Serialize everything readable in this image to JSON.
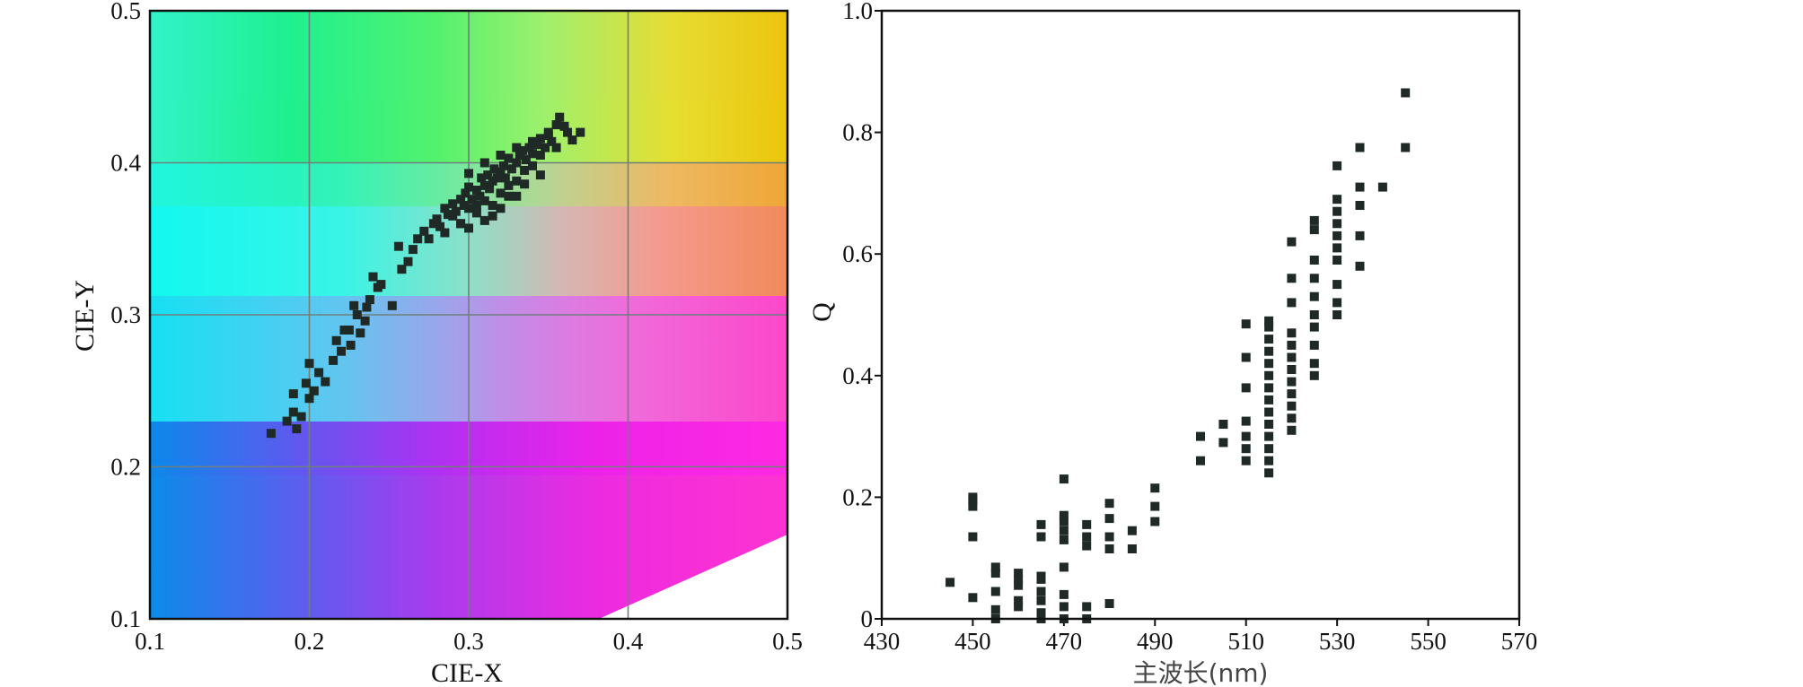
{
  "chart_data": [
    {
      "type": "scatter",
      "title": "",
      "xlabel": "CIE-X",
      "ylabel": "CIE-Y",
      "xlim": [
        0.1,
        0.5
      ],
      "ylim": [
        0.1,
        0.5
      ],
      "xticks": [
        "0.1",
        "0.2",
        "0.3",
        "0.4",
        "0.5"
      ],
      "yticks": [
        "0.1",
        "0.2",
        "0.3",
        "0.4",
        "0.5"
      ],
      "grid": true,
      "background": "CIE chromaticity color gamut",
      "marker_color": "#1f2a26",
      "x": [
        0.176,
        0.186,
        0.19,
        0.192,
        0.195,
        0.2,
        0.198,
        0.203,
        0.206,
        0.21,
        0.19,
        0.2,
        0.215,
        0.22,
        0.217,
        0.225,
        0.23,
        0.235,
        0.228,
        0.232,
        0.238,
        0.24,
        0.243,
        0.245,
        0.236,
        0.226,
        0.222,
        0.252,
        0.258,
        0.262,
        0.256,
        0.265,
        0.268,
        0.272,
        0.275,
        0.278,
        0.28,
        0.282,
        0.285,
        0.287,
        0.29,
        0.292,
        0.295,
        0.297,
        0.298,
        0.3,
        0.302,
        0.305,
        0.307,
        0.308,
        0.31,
        0.312,
        0.313,
        0.315,
        0.316,
        0.318,
        0.32,
        0.322,
        0.323,
        0.325,
        0.327,
        0.33,
        0.332,
        0.334,
        0.336,
        0.338,
        0.34,
        0.343,
        0.345,
        0.348,
        0.35,
        0.352,
        0.355,
        0.357,
        0.36,
        0.362,
        0.365,
        0.37,
        0.29,
        0.295,
        0.3,
        0.305,
        0.31,
        0.315,
        0.32,
        0.325,
        0.33,
        0.335,
        0.34,
        0.345,
        0.3,
        0.31,
        0.32,
        0.33,
        0.34,
        0.35,
        0.285,
        0.295,
        0.305,
        0.315,
        0.325,
        0.335,
        0.345,
        0.355,
        0.3,
        0.31,
        0.32,
        0.33
      ],
      "y": [
        0.222,
        0.23,
        0.236,
        0.225,
        0.233,
        0.245,
        0.255,
        0.25,
        0.262,
        0.256,
        0.248,
        0.268,
        0.27,
        0.276,
        0.283,
        0.29,
        0.3,
        0.296,
        0.306,
        0.288,
        0.31,
        0.325,
        0.318,
        0.32,
        0.305,
        0.28,
        0.29,
        0.306,
        0.33,
        0.335,
        0.345,
        0.343,
        0.35,
        0.355,
        0.35,
        0.36,
        0.363,
        0.358,
        0.37,
        0.366,
        0.373,
        0.368,
        0.376,
        0.372,
        0.38,
        0.384,
        0.376,
        0.382,
        0.378,
        0.39,
        0.385,
        0.392,
        0.383,
        0.388,
        0.396,
        0.39,
        0.394,
        0.398,
        0.39,
        0.403,
        0.396,
        0.4,
        0.405,
        0.408,
        0.402,
        0.41,
        0.406,
        0.412,
        0.416,
        0.41,
        0.418,
        0.414,
        0.425,
        0.43,
        0.424,
        0.42,
        0.415,
        0.42,
        0.365,
        0.36,
        0.37,
        0.372,
        0.375,
        0.365,
        0.38,
        0.385,
        0.388,
        0.395,
        0.398,
        0.405,
        0.393,
        0.4,
        0.405,
        0.41,
        0.414,
        0.42,
        0.354,
        0.36,
        0.367,
        0.372,
        0.378,
        0.386,
        0.392,
        0.41,
        0.357,
        0.362,
        0.37,
        0.378
      ]
    },
    {
      "type": "scatter",
      "title": "",
      "xlabel": "主波长(nm)",
      "ylabel": "Q",
      "xlim": [
        430,
        570
      ],
      "ylim": [
        0,
        1.0
      ],
      "xticks": [
        "430",
        "450",
        "470",
        "490",
        "510",
        "530",
        "550",
        "570"
      ],
      "yticks": [
        "0",
        "0.2",
        "0.4",
        "0.6",
        "0.8",
        "1.0"
      ],
      "grid": false,
      "marker_color": "#1f2a26",
      "x": [
        445,
        450,
        450,
        450,
        450,
        450,
        455,
        455,
        455,
        455,
        455,
        460,
        460,
        460,
        460,
        460,
        465,
        465,
        465,
        465,
        465,
        465,
        465,
        465,
        470,
        470,
        470,
        470,
        470,
        470,
        470,
        470,
        470,
        475,
        475,
        475,
        475,
        475,
        480,
        480,
        480,
        480,
        480,
        485,
        485,
        490,
        490,
        490,
        500,
        500,
        505,
        505,
        510,
        510,
        510,
        510,
        510,
        510,
        510,
        515,
        515,
        515,
        515,
        515,
        515,
        515,
        515,
        515,
        515,
        515,
        515,
        515,
        515,
        520,
        520,
        520,
        520,
        520,
        520,
        520,
        520,
        520,
        520,
        520,
        520,
        525,
        525,
        525,
        525,
        525,
        525,
        525,
        525,
        525,
        525,
        530,
        530,
        530,
        530,
        530,
        530,
        530,
        530,
        530,
        530,
        535,
        535,
        535,
        535,
        535,
        540,
        545,
        545
      ],
      "y": [
        0.06,
        0.035,
        0.135,
        0.185,
        0.195,
        0.2,
        0.0,
        0.015,
        0.045,
        0.075,
        0.085,
        0.02,
        0.03,
        0.055,
        0.065,
        0.075,
        0.0,
        0.01,
        0.03,
        0.045,
        0.065,
        0.07,
        0.135,
        0.155,
        0.0,
        0.02,
        0.04,
        0.085,
        0.13,
        0.145,
        0.16,
        0.17,
        0.23,
        0.0,
        0.02,
        0.12,
        0.135,
        0.155,
        0.025,
        0.115,
        0.135,
        0.165,
        0.19,
        0.115,
        0.145,
        0.16,
        0.185,
        0.215,
        0.26,
        0.3,
        0.29,
        0.32,
        0.26,
        0.28,
        0.3,
        0.325,
        0.38,
        0.43,
        0.485,
        0.24,
        0.26,
        0.28,
        0.3,
        0.32,
        0.34,
        0.36,
        0.38,
        0.4,
        0.42,
        0.44,
        0.46,
        0.48,
        0.49,
        0.31,
        0.33,
        0.35,
        0.37,
        0.39,
        0.41,
        0.43,
        0.45,
        0.47,
        0.52,
        0.56,
        0.62,
        0.4,
        0.42,
        0.45,
        0.48,
        0.5,
        0.53,
        0.56,
        0.59,
        0.64,
        0.655,
        0.5,
        0.52,
        0.55,
        0.59,
        0.61,
        0.63,
        0.65,
        0.67,
        0.69,
        0.745,
        0.58,
        0.63,
        0.68,
        0.71,
        0.775,
        0.71,
        0.775,
        0.865
      ]
    }
  ]
}
